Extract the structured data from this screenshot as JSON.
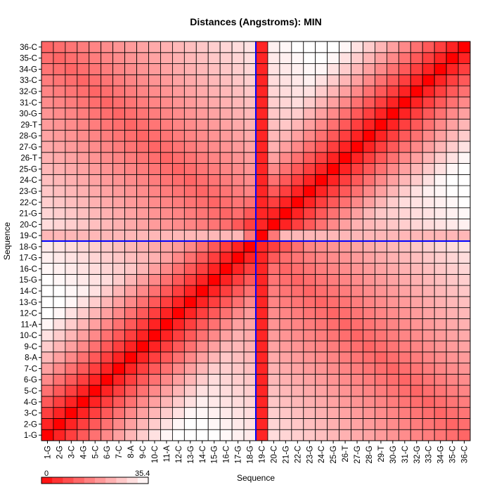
{
  "chart_data": {
    "type": "heatmap",
    "title": "Distances (Angstroms):  MIN",
    "xlabel": "Sequence",
    "ylabel": "Sequence",
    "labels": [
      "1-G",
      "2-G",
      "3-C",
      "4-G",
      "5-C",
      "6-G",
      "7-C",
      "8-A",
      "9-C",
      "10-C",
      "11-A",
      "12-C",
      "13-G",
      "14-C",
      "15-G",
      "16-C",
      "17-G",
      "18-G",
      "19-C",
      "20-C",
      "21-G",
      "22-C",
      "23-G",
      "24-C",
      "25-G",
      "26-T",
      "27-G",
      "28-G",
      "29-T",
      "30-G",
      "31-C",
      "32-G",
      "33-C",
      "34-G",
      "35-C",
      "36-C"
    ],
    "colorbar": {
      "min": 0,
      "max": 35.4,
      "min_label": "0",
      "max_label": "35.4",
      "low_color": "#ff0000",
      "high_color": "#ffffff"
    },
    "highlight": {
      "index": 19,
      "label": "19-C",
      "line_color": "#0000ff"
    },
    "diagonal_value": 0,
    "distance_rule": "min(|i-j|*3.4, 12 + 0.65*|(i+j)-37|*1.7)",
    "pinned_row_value": 3.6,
    "pinned_row_cross_value": 24,
    "grid": true
  }
}
